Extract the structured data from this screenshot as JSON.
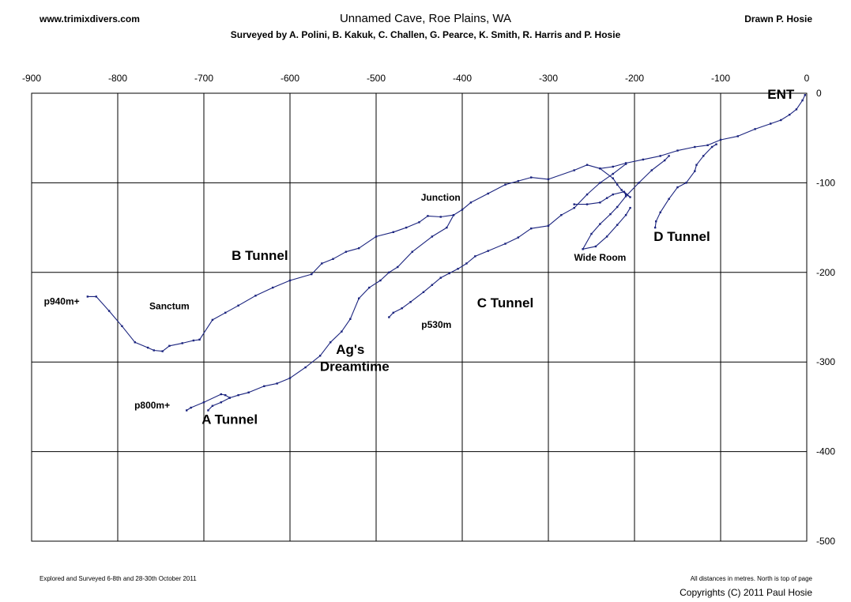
{
  "header": {
    "website": "www.trimixdivers.com",
    "title": "Unnamed Cave, Roe Plains, WA",
    "surveyors": "Surveyed by A. Polini, B. Kakuk, C. Challen, G. Pearce, K. Smith, R. Harris and P. Hosie",
    "drawn_by": "Drawn P. Hosie"
  },
  "footer": {
    "explored": "Explored and Surveyed 6-8th and 28-30th October 2011",
    "units_note": "All distances in metres. North is top of page",
    "copyright": "Copyrights (C) 2011 Paul Hosie"
  },
  "map": {
    "line_color": "#1a237e",
    "grid_color": "#000000",
    "x_ticks": [
      -900,
      -800,
      -700,
      -600,
      -500,
      -400,
      -300,
      -200,
      -100,
      0
    ],
    "y_ticks": [
      0,
      -100,
      -200,
      -300,
      -400,
      -500
    ],
    "labels": [
      {
        "text": "ENT",
        "x": -30,
        "y": -6,
        "size": "large"
      },
      {
        "text": "Junction",
        "x": -425,
        "y": -120,
        "size": "small"
      },
      {
        "text": "B Tunnel",
        "x": -635,
        "y": -186,
        "size": "large"
      },
      {
        "text": "D Tunnel",
        "x": -145,
        "y": -165,
        "size": "large"
      },
      {
        "text": "Wide Room",
        "x": -240,
        "y": -187,
        "size": "small"
      },
      {
        "text": "C Tunnel",
        "x": -350,
        "y": -239,
        "size": "large"
      },
      {
        "text": "p940m+",
        "x": -865,
        "y": -236,
        "size": "small"
      },
      {
        "text": "Sanctum",
        "x": -740,
        "y": -241,
        "size": "small"
      },
      {
        "text": "p530m",
        "x": -430,
        "y": -262,
        "size": "small"
      },
      {
        "text": "Ag's",
        "x": -530,
        "y": -291,
        "size": "large"
      },
      {
        "text": "Dreamtime",
        "x": -525,
        "y": -310,
        "size": "large"
      },
      {
        "text": "p800m+",
        "x": -760,
        "y": -352,
        "size": "small"
      },
      {
        "text": "A Tunnel",
        "x": -670,
        "y": -369,
        "size": "large"
      }
    ],
    "passages": [
      {
        "name": "main-passage",
        "points": [
          [
            -2,
            -2
          ],
          [
            -5,
            -8
          ],
          [
            -12,
            -18
          ],
          [
            -20,
            -24
          ],
          [
            -30,
            -30
          ],
          [
            -42,
            -34
          ],
          [
            -60,
            -40
          ],
          [
            -80,
            -48
          ],
          [
            -100,
            -52
          ],
          [
            -115,
            -58
          ],
          [
            -130,
            -60
          ],
          [
            -150,
            -64
          ],
          [
            -170,
            -70
          ],
          [
            -190,
            -74
          ],
          [
            -210,
            -78
          ],
          [
            -225,
            -82
          ],
          [
            -240,
            -84
          ],
          [
            -255,
            -80
          ],
          [
            -270,
            -86
          ],
          [
            -300,
            -96
          ],
          [
            -320,
            -94
          ],
          [
            -335,
            -98
          ],
          [
            -350,
            -102
          ],
          [
            -370,
            -112
          ],
          [
            -390,
            -122
          ],
          [
            -400,
            -130
          ],
          [
            -410,
            -136
          ],
          [
            -425,
            -138
          ],
          [
            -440,
            -137
          ],
          [
            -450,
            -144
          ],
          [
            -465,
            -150
          ],
          [
            -480,
            -155
          ],
          [
            -500,
            -160
          ],
          [
            -520,
            -173
          ],
          [
            -535,
            -177
          ],
          [
            -550,
            -185
          ],
          [
            -563,
            -190
          ],
          [
            -575,
            -202
          ],
          [
            -600,
            -209
          ],
          [
            -620,
            -217
          ],
          [
            -640,
            -226
          ],
          [
            -660,
            -237
          ],
          [
            -675,
            -245
          ],
          [
            -690,
            -253
          ],
          [
            -705,
            -275
          ],
          [
            -712,
            -276
          ],
          [
            -725,
            -279
          ],
          [
            -740,
            -282
          ],
          [
            -748,
            -288
          ],
          [
            -758,
            -287
          ],
          [
            -765,
            -284
          ],
          [
            -780,
            -278
          ],
          [
            -795,
            -260
          ],
          [
            -810,
            -243
          ],
          [
            -825,
            -227
          ],
          [
            -835,
            -227
          ]
        ]
      },
      {
        "name": "a-tunnel",
        "points": [
          [
            -410,
            -136
          ],
          [
            -418,
            -150
          ],
          [
            -435,
            -160
          ],
          [
            -458,
            -177
          ],
          [
            -475,
            -194
          ],
          [
            -485,
            -200
          ],
          [
            -495,
            -209
          ],
          [
            -508,
            -217
          ],
          [
            -520,
            -229
          ],
          [
            -530,
            -252
          ],
          [
            -540,
            -266
          ],
          [
            -553,
            -278
          ],
          [
            -565,
            -293
          ],
          [
            -582,
            -306
          ],
          [
            -600,
            -318
          ],
          [
            -615,
            -324
          ],
          [
            -630,
            -327
          ],
          [
            -648,
            -334
          ],
          [
            -660,
            -337
          ],
          [
            -670,
            -340
          ],
          [
            -680,
            -345
          ],
          [
            -690,
            -349
          ],
          [
            -695,
            -354
          ]
        ]
      },
      {
        "name": "a-tunnel-side",
        "points": [
          [
            -670,
            -340
          ],
          [
            -675,
            -337
          ],
          [
            -680,
            -336
          ],
          [
            -700,
            -345
          ],
          [
            -715,
            -351
          ],
          [
            -720,
            -354
          ]
        ]
      },
      {
        "name": "c-tunnel",
        "points": [
          [
            -210,
            -79
          ],
          [
            -225,
            -90
          ],
          [
            -240,
            -100
          ],
          [
            -255,
            -113
          ],
          [
            -270,
            -128
          ],
          [
            -285,
            -136
          ],
          [
            -300,
            -148
          ],
          [
            -320,
            -151
          ],
          [
            -335,
            -161
          ],
          [
            -350,
            -168
          ],
          [
            -370,
            -176
          ],
          [
            -385,
            -182
          ],
          [
            -395,
            -190
          ],
          [
            -405,
            -196
          ],
          [
            -415,
            -201
          ],
          [
            -425,
            -206
          ],
          [
            -435,
            -214
          ],
          [
            -445,
            -222
          ],
          [
            -460,
            -233
          ],
          [
            -470,
            -240
          ],
          [
            -480,
            -245
          ],
          [
            -485,
            -250
          ]
        ]
      },
      {
        "name": "d-tunnel",
        "points": [
          [
            -105,
            -57
          ],
          [
            -110,
            -60
          ],
          [
            -120,
            -70
          ],
          [
            -128,
            -80
          ],
          [
            -130,
            -87
          ],
          [
            -140,
            -100
          ],
          [
            -150,
            -105
          ],
          [
            -160,
            -118
          ],
          [
            -170,
            -133
          ],
          [
            -175,
            -143
          ],
          [
            -176,
            -150
          ]
        ]
      },
      {
        "name": "wide-room-loop",
        "points": [
          [
            -160,
            -70
          ],
          [
            -165,
            -75
          ],
          [
            -180,
            -86
          ],
          [
            -195,
            -100
          ],
          [
            -210,
            -115
          ],
          [
            -220,
            -127
          ],
          [
            -228,
            -135
          ],
          [
            -240,
            -146
          ],
          [
            -250,
            -157
          ],
          [
            -260,
            -174
          ],
          [
            -245,
            -171
          ],
          [
            -232,
            -160
          ],
          [
            -220,
            -147
          ],
          [
            -210,
            -136
          ],
          [
            -205,
            -128
          ]
        ]
      },
      {
        "name": "wide-room-branch",
        "points": [
          [
            -240,
            -84
          ],
          [
            -225,
            -95
          ],
          [
            -220,
            -102
          ],
          [
            -215,
            -108
          ],
          [
            -210,
            -113
          ],
          [
            -205,
            -116
          ],
          [
            -212,
            -110
          ],
          [
            -225,
            -113
          ],
          [
            -232,
            -117
          ],
          [
            -240,
            -122
          ],
          [
            -255,
            -124
          ],
          [
            -270,
            -124
          ]
        ]
      }
    ]
  }
}
